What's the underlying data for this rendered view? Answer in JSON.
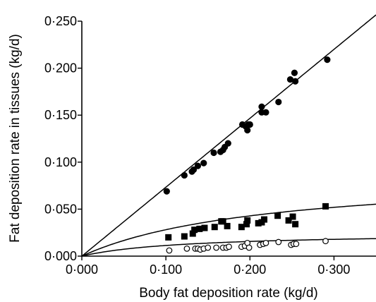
{
  "chart_data": {
    "type": "scatter",
    "title": "",
    "xlabel": "Body fat deposition rate (kg/d)",
    "ylabel": "Fat deposition rate in tissues (kg/d)",
    "xlim": [
      0,
      0.35
    ],
    "ylim": [
      0,
      0.25
    ],
    "xticks": [
      0,
      0.1,
      0.2,
      0.3
    ],
    "xtick_labels": [
      "0·000",
      "0·100",
      "0·200",
      "0·300"
    ],
    "yticks": [
      0,
      0.05,
      0.1,
      0.15,
      0.2,
      0.25
    ],
    "ytick_labels": [
      "0·000",
      "0·050",
      "0·100",
      "0·150",
      "0·200",
      "0·250"
    ],
    "grid": false,
    "legend": "none",
    "series": [
      {
        "marker": "filled-circle",
        "color": "#000000",
        "points": [
          [
            0.101,
            0.069
          ],
          [
            0.122,
            0.086
          ],
          [
            0.131,
            0.09
          ],
          [
            0.133,
            0.092
          ],
          [
            0.138,
            0.096
          ],
          [
            0.145,
            0.099
          ],
          [
            0.157,
            0.11
          ],
          [
            0.165,
            0.111
          ],
          [
            0.168,
            0.113
          ],
          [
            0.17,
            0.116
          ],
          [
            0.174,
            0.12
          ],
          [
            0.191,
            0.14
          ],
          [
            0.195,
            0.138
          ],
          [
            0.197,
            0.134
          ],
          [
            0.2,
            0.14
          ],
          [
            0.198,
            0.14
          ],
          [
            0.214,
            0.159
          ],
          [
            0.214,
            0.153
          ],
          [
            0.219,
            0.153
          ],
          [
            0.234,
            0.164
          ],
          [
            0.248,
            0.188
          ],
          [
            0.253,
            0.195
          ],
          [
            0.254,
            0.186
          ],
          [
            0.292,
            0.209
          ]
        ],
        "fit": {
          "kind": "linear",
          "slope": 0.7333
        }
      },
      {
        "marker": "filled-square",
        "color": "#000000",
        "points": [
          [
            0.103,
            0.02
          ],
          [
            0.122,
            0.021
          ],
          [
            0.132,
            0.024
          ],
          [
            0.134,
            0.028
          ],
          [
            0.14,
            0.029
          ],
          [
            0.146,
            0.03
          ],
          [
            0.158,
            0.031
          ],
          [
            0.166,
            0.037
          ],
          [
            0.168,
            0.037
          ],
          [
            0.173,
            0.032
          ],
          [
            0.19,
            0.031
          ],
          [
            0.196,
            0.034
          ],
          [
            0.197,
            0.038
          ],
          [
            0.21,
            0.035
          ],
          [
            0.214,
            0.036
          ],
          [
            0.217,
            0.039
          ],
          [
            0.233,
            0.043
          ],
          [
            0.246,
            0.038
          ],
          [
            0.251,
            0.042
          ],
          [
            0.254,
            0.034
          ],
          [
            0.29,
            0.053
          ]
        ],
        "fit": {
          "kind": "curve",
          "asymptote": 0.09,
          "half": 0.22
        }
      },
      {
        "marker": "open-circle",
        "color": "#000000",
        "points": [
          [
            0.104,
            0.006
          ],
          [
            0.125,
            0.008
          ],
          [
            0.135,
            0.008
          ],
          [
            0.138,
            0.008
          ],
          [
            0.141,
            0.007
          ],
          [
            0.145,
            0.008
          ],
          [
            0.15,
            0.009
          ],
          [
            0.16,
            0.009
          ],
          [
            0.168,
            0.009
          ],
          [
            0.172,
            0.009
          ],
          [
            0.175,
            0.01
          ],
          [
            0.19,
            0.01
          ],
          [
            0.194,
            0.011
          ],
          [
            0.197,
            0.014
          ],
          [
            0.199,
            0.009
          ],
          [
            0.212,
            0.012
          ],
          [
            0.216,
            0.013
          ],
          [
            0.219,
            0.014
          ],
          [
            0.234,
            0.015
          ],
          [
            0.249,
            0.012
          ],
          [
            0.252,
            0.013
          ],
          [
            0.255,
            0.013
          ],
          [
            0.29,
            0.016
          ]
        ],
        "fit": {
          "kind": "curve",
          "asymptote": 0.025,
          "half": 0.12
        }
      }
    ]
  }
}
